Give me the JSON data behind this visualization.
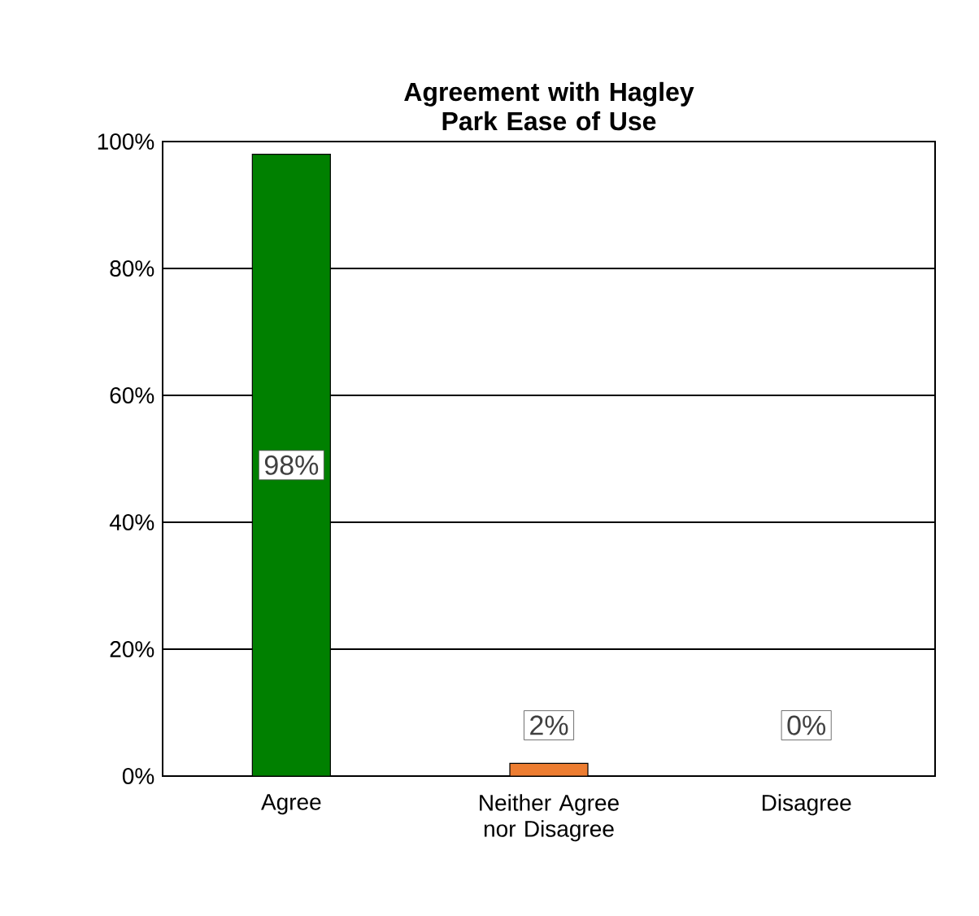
{
  "chart_data": {
    "type": "bar",
    "title": "Agreement with Hagley Park Ease of Use",
    "categories": [
      "Agree",
      "Neither Agree nor Disagree",
      "Disagree"
    ],
    "values": [
      98,
      2,
      0
    ],
    "colors": [
      "#008000",
      "#ed7d31",
      "#a5a5a5"
    ],
    "value_labels": [
      "98%",
      "2%",
      "0%"
    ],
    "ylim": [
      0,
      100
    ],
    "yticks": [
      {
        "value": 0,
        "label": "0%"
      },
      {
        "value": 20,
        "label": "20%"
      },
      {
        "value": 40,
        "label": "40%"
      },
      {
        "value": 60,
        "label": "60%"
      },
      {
        "value": 80,
        "label": "80%"
      },
      {
        "value": 100,
        "label": "100%"
      }
    ],
    "grid": "y"
  }
}
